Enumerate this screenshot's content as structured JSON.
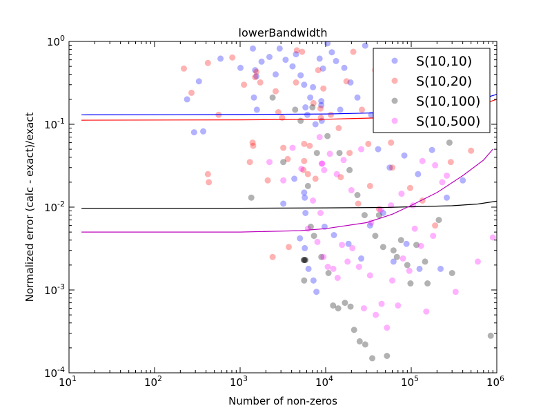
{
  "chart_data": {
    "type": "scatter",
    "title": "lowerBandwidth",
    "xlabel": "Number of non-zeros",
    "ylabel": "Normalized error (calc - exact)/exact",
    "x_scale": "log",
    "y_scale": "log",
    "xlim": [
      10,
      1000000
    ],
    "ylim": [
      0.0001,
      1
    ],
    "x_ticks": [
      {
        "value": 10,
        "base": "10",
        "exp": "1"
      },
      {
        "value": 100,
        "base": "10",
        "exp": "2"
      },
      {
        "value": 1000,
        "base": "10",
        "exp": "3"
      },
      {
        "value": 10000,
        "base": "10",
        "exp": "4"
      },
      {
        "value": 100000,
        "base": "10",
        "exp": "5"
      },
      {
        "value": 1000000,
        "base": "10",
        "exp": "6"
      }
    ],
    "y_ticks": [
      {
        "value": 0.0001,
        "base": "10",
        "exp": "-4"
      },
      {
        "value": 0.001,
        "base": "10",
        "exp": "-3"
      },
      {
        "value": 0.01,
        "base": "10",
        "exp": "-2"
      },
      {
        "value": 0.1,
        "base": "10",
        "exp": "-1"
      },
      {
        "value": 1,
        "base": "10",
        "exp": "0"
      }
    ],
    "grid": false,
    "legend_position": "top-right",
    "series": [
      {
        "name": "S(10,10)",
        "color": "#0000ff",
        "points": [
          [
            240,
            0.2
          ],
          [
            330,
            0.33
          ],
          [
            590,
            0.62
          ],
          [
            1010,
            0.48
          ],
          [
            1410,
            0.82
          ],
          [
            1570,
            0.15
          ],
          [
            1780,
            0.57
          ],
          [
            2200,
            0.65
          ],
          [
            2600,
            0.4
          ],
          [
            2900,
            0.82
          ],
          [
            3400,
            0.6
          ],
          [
            4100,
            0.5
          ],
          [
            4500,
            0.7
          ],
          [
            5100,
            0.39
          ],
          [
            5600,
            0.3
          ],
          [
            5800,
            0.16
          ],
          [
            6100,
            0.13
          ],
          [
            6600,
            0.21
          ],
          [
            7100,
            0.28
          ],
          [
            7600,
            0.1
          ],
          [
            8500,
            0.62
          ],
          [
            9300,
            0.47
          ],
          [
            10500,
            0.95
          ],
          [
            11800,
            0.74
          ],
          [
            13200,
            0.58
          ],
          [
            14800,
            0.15
          ],
          [
            16500,
            0.48
          ],
          [
            19500,
            0.32
          ],
          [
            23500,
            0.21
          ],
          [
            29000,
            0.89
          ],
          [
            34000,
            0.13
          ],
          [
            41000,
            0.05
          ],
          [
            56000,
            0.03
          ],
          [
            68000,
            0.1
          ],
          [
            83000,
            0.042
          ],
          [
            120000,
            0.025
          ],
          [
            175000,
            0.049
          ],
          [
            260000,
            0.013
          ],
          [
            400000,
            0.021
          ],
          [
            680000,
            0.14
          ],
          [
            3200,
            0.011
          ],
          [
            4300,
            0.022
          ],
          [
            5000,
            0.0042
          ],
          [
            5700,
            0.0032
          ],
          [
            6300,
            0.0018
          ],
          [
            7200,
            0.0013
          ],
          [
            7800,
            0.00095
          ],
          [
            9700,
            0.0058
          ],
          [
            12500,
            0.0046
          ],
          [
            18500,
            0.0036
          ],
          [
            26000,
            0.0024
          ],
          [
            33000,
            0.006
          ],
          [
            47000,
            0.0085
          ],
          [
            62000,
            0.0022
          ],
          [
            88000,
            0.0036
          ],
          [
            125000,
            0.0018
          ],
          [
            220000,
            0.0018
          ],
          [
            1500,
            0.45
          ],
          [
            1550,
            0.38
          ],
          [
            1450,
            0.21
          ],
          [
            8900,
            0.19
          ],
          [
            8900,
            0.17
          ],
          [
            9000,
            0.11
          ],
          [
            5600,
            0.015
          ],
          [
            5700,
            0.013
          ],
          [
            5800,
            0.0085
          ],
          [
            370,
            0.082
          ],
          [
            290,
            0.08
          ]
        ]
      },
      {
        "name": "S(10,20)",
        "color": "#ff0000",
        "points": [
          [
            220,
            0.47
          ],
          [
            270,
            0.24
          ],
          [
            420,
            0.55
          ],
          [
            560,
            0.13
          ],
          [
            810,
            0.64
          ],
          [
            1110,
            0.3
          ],
          [
            1420,
            0.055
          ],
          [
            1720,
            0.32
          ],
          [
            2100,
            0.021
          ],
          [
            2400,
            0.0025
          ],
          [
            2800,
            0.14
          ],
          [
            3200,
            0.052
          ],
          [
            3700,
            0.0033
          ],
          [
            4500,
            0.32
          ],
          [
            5300,
            0.75
          ],
          [
            6500,
            0.055
          ],
          [
            7200,
            0.18
          ],
          [
            8200,
            0.45
          ],
          [
            9400,
            0.27
          ],
          [
            11500,
            0.13
          ],
          [
            14200,
            0.09
          ],
          [
            17500,
            0.33
          ],
          [
            21000,
            0.75
          ],
          [
            26500,
            0.15
          ],
          [
            31500,
            0.058
          ],
          [
            38000,
            0.45
          ],
          [
            46000,
            0.13
          ],
          [
            58000,
            0.06
          ],
          [
            73000,
            0.17
          ],
          [
            97000,
            0.017
          ],
          [
            135000,
            0.012
          ],
          [
            190000,
            0.006
          ],
          [
            290000,
            0.035
          ],
          [
            500000,
            0.048
          ],
          [
            420,
            0.025
          ],
          [
            430,
            0.02
          ],
          [
            1300,
            0.035
          ],
          [
            1400,
            0.06
          ],
          [
            2600,
            0.25
          ],
          [
            3100,
            0.12
          ],
          [
            3600,
            0.038
          ],
          [
            4600,
            0.78
          ],
          [
            5500,
            0.028
          ],
          [
            6200,
            0.025
          ],
          [
            7600,
            0.022
          ],
          [
            15000,
            0.023
          ],
          [
            19000,
            0.045
          ],
          [
            24000,
            0.011
          ],
          [
            33000,
            0.018
          ],
          [
            42000,
            0.0095
          ],
          [
            60000,
            0.03
          ],
          [
            5600,
            0.058
          ],
          [
            5600,
            0.036
          ],
          [
            8700,
            0.155
          ],
          [
            8800,
            0.12
          ],
          [
            1550,
            0.43
          ],
          [
            1500,
            0.37
          ]
        ]
      },
      {
        "name": "S(10,100)",
        "color": "#000000",
        "points": [
          [
            1350,
            0.013
          ],
          [
            2400,
            0.21
          ],
          [
            3200,
            0.035
          ],
          [
            4400,
            0.15
          ],
          [
            5100,
            0.11
          ],
          [
            5600,
            0.0013
          ],
          [
            6200,
            0.018
          ],
          [
            6700,
            0.0058
          ],
          [
            7300,
            0.0045
          ],
          [
            7900,
            0.045
          ],
          [
            8900,
            0.0025
          ],
          [
            10800,
            0.0016
          ],
          [
            12200,
            0.00065
          ],
          [
            14000,
            0.0006
          ],
          [
            16800,
            0.0007
          ],
          [
            19500,
            0.00063
          ],
          [
            21500,
            0.00033
          ],
          [
            25000,
            0.00024
          ],
          [
            29000,
            0.00022
          ],
          [
            35000,
            0.00015
          ],
          [
            42000,
            0.008
          ],
          [
            52000,
            0.00016
          ],
          [
            62000,
            0.003
          ],
          [
            76000,
            0.004
          ],
          [
            90000,
            0.002
          ],
          [
            115000,
            0.0035
          ],
          [
            155000,
            0.0012
          ],
          [
            210000,
            0.007
          ],
          [
            300000,
            0.0016
          ],
          [
            850000,
            0.00028
          ],
          [
            7000,
            0.16
          ],
          [
            10500,
            0.072
          ],
          [
            14500,
            0.045
          ],
          [
            19000,
            0.028
          ],
          [
            23500,
            0.014
          ],
          [
            28500,
            0.008
          ],
          [
            38000,
            0.0045
          ],
          [
            47000,
            0.0033
          ],
          [
            68000,
            0.0025
          ],
          [
            98000,
            0.0012
          ],
          [
            145000,
            0.0022
          ],
          [
            280000,
            0.06
          ],
          [
            5700,
            0.0023
          ],
          [
            5600,
            0.0023
          ],
          [
            5550,
            0.0023
          ],
          [
            5800,
            0.0023
          ]
        ]
      },
      {
        "name": "S(10,500)",
        "color": "#ff00ff",
        "points": [
          [
            2200,
            0.035
          ],
          [
            3200,
            0.021
          ],
          [
            4100,
            0.052
          ],
          [
            5200,
            0.029
          ],
          [
            6200,
            0.0055
          ],
          [
            7100,
            0.012
          ],
          [
            8000,
            0.0038
          ],
          [
            9400,
            0.0025
          ],
          [
            10600,
            0.0019
          ],
          [
            12300,
            0.0018
          ],
          [
            13800,
            0.0014
          ],
          [
            15500,
            0.0035
          ],
          [
            18000,
            0.0022
          ],
          [
            20500,
            0.0032
          ],
          [
            24500,
            0.0019
          ],
          [
            28000,
            0.0006
          ],
          [
            33000,
            0.0015
          ],
          [
            38500,
            0.0005
          ],
          [
            45000,
            0.00068
          ],
          [
            52000,
            0.00035
          ],
          [
            60000,
            0.0013
          ],
          [
            70000,
            0.00065
          ],
          [
            80000,
            0.0024
          ],
          [
            95000,
            0.0017
          ],
          [
            110000,
            0.0055
          ],
          [
            130000,
            0.0034
          ],
          [
            150000,
            0.00055
          ],
          [
            180000,
            0.0045
          ],
          [
            230000,
            0.02
          ],
          [
            330000,
            0.00095
          ],
          [
            600000,
            0.0022
          ],
          [
            900000,
            0.0043
          ],
          [
            8500,
            0.07
          ],
          [
            9600,
            0.028
          ],
          [
            11200,
            0.044
          ],
          [
            13500,
            0.025
          ],
          [
            16200,
            0.037
          ],
          [
            20000,
            0.016
          ],
          [
            26000,
            0.05
          ],
          [
            34000,
            0.0065
          ],
          [
            44000,
            0.0093
          ],
          [
            58000,
            0.0105
          ],
          [
            77000,
            0.0145
          ],
          [
            105000,
            0.0105
          ],
          [
            135000,
            0.036
          ],
          [
            190000,
            0.032
          ],
          [
            260000,
            0.024
          ],
          [
            9000,
            0.0335
          ],
          [
            9100,
            0.0335
          ],
          [
            8700,
            0.0085
          ]
        ]
      }
    ],
    "fit_lines": [
      {
        "series": "S(10,10)",
        "color": "#0000ff",
        "points": [
          [
            14,
            0.13
          ],
          [
            1000,
            0.131
          ],
          [
            10000,
            0.133
          ],
          [
            50000,
            0.138
          ],
          [
            100000,
            0.144
          ],
          [
            300000,
            0.163
          ],
          [
            600000,
            0.195
          ],
          [
            1000000,
            0.23
          ]
        ]
      },
      {
        "series": "S(10,20)",
        "color": "#ff0000",
        "points": [
          [
            14,
            0.112
          ],
          [
            1000,
            0.113
          ],
          [
            10000,
            0.115
          ],
          [
            50000,
            0.12
          ],
          [
            100000,
            0.126
          ],
          [
            300000,
            0.142
          ],
          [
            600000,
            0.168
          ],
          [
            1000000,
            0.2
          ]
        ]
      },
      {
        "series": "S(10,100)",
        "color": "#000000",
        "points": [
          [
            14,
            0.0097
          ],
          [
            1000,
            0.0097
          ],
          [
            10000,
            0.0098
          ],
          [
            50000,
            0.0099
          ],
          [
            100000,
            0.0101
          ],
          [
            300000,
            0.0104
          ],
          [
            600000,
            0.0109
          ],
          [
            1000000,
            0.0118
          ]
        ]
      },
      {
        "series": "S(10,500)",
        "color": "#bb00bb",
        "points": [
          [
            14,
            0.005
          ],
          [
            1000,
            0.005
          ],
          [
            5000,
            0.0052
          ],
          [
            10000,
            0.0055
          ],
          [
            30000,
            0.0065
          ],
          [
            60000,
            0.0082
          ],
          [
            100000,
            0.0105
          ],
          [
            200000,
            0.015
          ],
          [
            400000,
            0.024
          ],
          [
            700000,
            0.037
          ],
          [
            900000,
            0.05
          ]
        ]
      }
    ]
  }
}
